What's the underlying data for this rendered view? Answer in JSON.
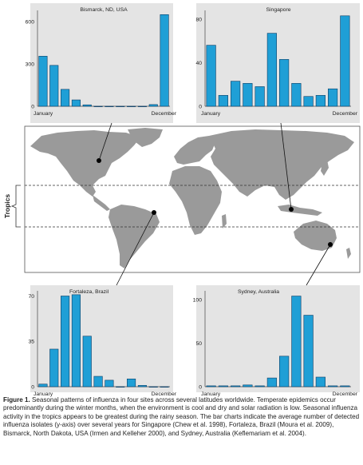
{
  "figure": {
    "tropics_label": "Tropics",
    "caption_label": "Figure 1.",
    "caption_text": "Seasonal patterns of influenza in four sites across several latitudes worldwide. Temperate epidemics occur predominantly during the winter months, when the environment is cool and dry and solar radiation is low. Seasonal influenza activity in the tropics appears to be greatest during the rainy season. The bar charts indicate the average number of detected influenza isolates (y-axis) over several years for Singapore (Chew et al. 1998), Fortaleza, Brazil (Moura et al. 2009), Bismarck, North Dakota, USA (Irmen and Kelleher 2000), and Sydney, Australia (Keflemariam et al. 2004)."
  },
  "colors": {
    "bar_fill": "#1f9fd6",
    "bar_stroke": "#0a3d66",
    "panel_bg": "#e4e4e4",
    "land": "#9a9a9a",
    "map_bg": "#ffffff"
  },
  "chart_data": [
    {
      "type": "bar",
      "title": "Bismarck, ND, USA",
      "categories": [
        "January",
        "",
        "",
        "",
        "",
        "",
        "",
        "",
        "",
        "",
        "",
        "December"
      ],
      "values": [
        355,
        290,
        120,
        45,
        10,
        0,
        0,
        0,
        0,
        0,
        12,
        650
      ],
      "yticks": [
        "0",
        "300",
        "600"
      ],
      "ylim": [
        0,
        680
      ]
    },
    {
      "type": "bar",
      "title": "Singapore",
      "categories": [
        "January",
        "",
        "",
        "",
        "",
        "",
        "",
        "",
        "",
        "",
        "",
        "December"
      ],
      "values": [
        56,
        10,
        23,
        21,
        18,
        67,
        43,
        21,
        9,
        10,
        16,
        83
      ],
      "yticks": [
        "0",
        "40",
        "80"
      ],
      "ylim": [
        0,
        88
      ]
    },
    {
      "type": "bar",
      "title": "Fortaleza, Brazil",
      "categories": [
        "January",
        "",
        "",
        "",
        "",
        "",
        "",
        "",
        "",
        "",
        "",
        "December"
      ],
      "values": [
        2,
        29,
        70,
        71,
        39,
        8,
        5,
        0,
        6,
        1,
        0,
        0
      ],
      "yticks": [
        "0",
        "35",
        "70"
      ],
      "ylim": [
        0,
        74
      ]
    },
    {
      "type": "bar",
      "title": "Sydney, Australia",
      "categories": [
        "January",
        "",
        "",
        "",
        "",
        "",
        "",
        "",
        "",
        "",
        "",
        "December"
      ],
      "values": [
        1,
        1,
        1,
        2,
        1,
        10,
        35,
        104,
        82,
        11,
        1,
        1
      ],
      "yticks": [
        "0",
        "50",
        "100"
      ],
      "ylim": [
        0,
        110
      ]
    }
  ]
}
